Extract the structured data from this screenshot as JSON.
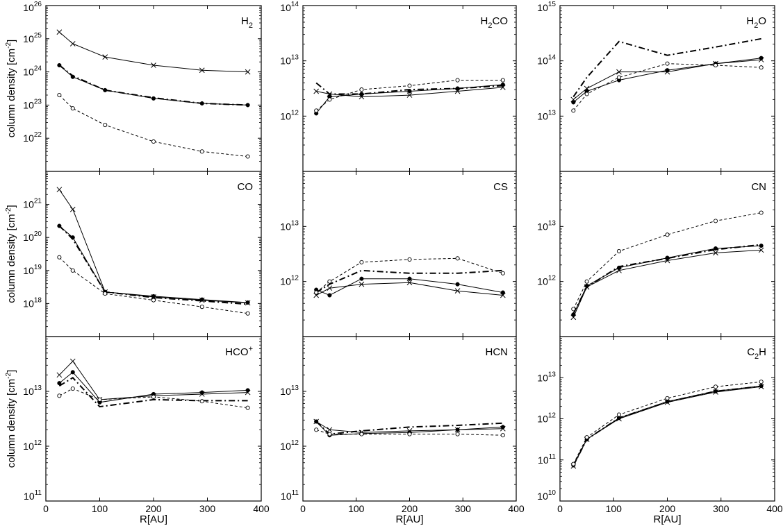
{
  "figure": {
    "ylabel": "column density [cm-2]",
    "ylabel_parts": [
      "column density [cm",
      "-2",
      "]"
    ],
    "xlabel": "R[AU]"
  },
  "chart_data": [
    {
      "type": "line",
      "title": "H2",
      "title_parts": [
        [
          "H",
          ""
        ],
        [
          "2",
          "sub"
        ]
      ],
      "xlabel": "",
      "ylabel": "column density [cm-2]",
      "xlim": [
        0,
        400
      ],
      "ylim_log10": [
        21,
        26
      ],
      "yticks": [
        "10^22",
        "10^23",
        "10^24",
        "10^25",
        "10^26"
      ],
      "series": [
        {
          "name": "cross",
          "marker": "x",
          "x": [
            25,
            50,
            110,
            200,
            290,
            375
          ],
          "y_log10": [
            25.2,
            24.85,
            24.45,
            24.2,
            24.05,
            24.0
          ]
        },
        {
          "name": "filled",
          "marker": "dot",
          "x": [
            25,
            50,
            110,
            200,
            290,
            375
          ],
          "y_log10": [
            24.2,
            23.85,
            23.45,
            23.2,
            23.05,
            23.0
          ]
        },
        {
          "name": "dashdot",
          "marker": "none",
          "x": [
            25,
            50,
            110,
            200,
            290,
            375
          ],
          "y_log10": [
            24.2,
            23.88,
            23.45,
            23.22,
            23.05,
            23.0
          ]
        },
        {
          "name": "open",
          "marker": "circle",
          "x": [
            25,
            50,
            110,
            200,
            290,
            375
          ],
          "y_log10": [
            23.3,
            22.9,
            22.4,
            21.9,
            21.6,
            21.45
          ]
        }
      ]
    },
    {
      "type": "line",
      "title": "H2CO",
      "title_parts": [
        [
          "H",
          ""
        ],
        [
          "2",
          "sub"
        ],
        [
          "CO",
          ""
        ]
      ],
      "xlim": [
        0,
        400
      ],
      "ylim_log10": [
        11,
        14
      ],
      "yticks": [
        "10^12",
        "10^13",
        "10^14"
      ],
      "series": [
        {
          "name": "cross",
          "marker": "x",
          "x": [
            25,
            50,
            110,
            200,
            290,
            375
          ],
          "y_log10": [
            12.45,
            12.4,
            12.35,
            12.38,
            12.45,
            12.52
          ]
        },
        {
          "name": "filled",
          "marker": "dot",
          "x": [
            25,
            50,
            110,
            200,
            290,
            375
          ],
          "y_log10": [
            12.05,
            12.35,
            12.4,
            12.45,
            12.5,
            12.57
          ]
        },
        {
          "name": "dashdot",
          "marker": "none",
          "x": [
            25,
            50,
            110,
            200,
            290,
            375
          ],
          "y_log10": [
            12.6,
            12.4,
            12.4,
            12.48,
            12.5,
            12.55
          ]
        },
        {
          "name": "open",
          "marker": "circle",
          "x": [
            25,
            50,
            110,
            200,
            290,
            375
          ],
          "y_log10": [
            12.1,
            12.3,
            12.48,
            12.55,
            12.65,
            12.65
          ]
        }
      ]
    },
    {
      "type": "line",
      "title": "H2O",
      "title_parts": [
        [
          "H",
          ""
        ],
        [
          "2",
          "sub"
        ],
        [
          "O",
          ""
        ]
      ],
      "xlim": [
        0,
        400
      ],
      "ylim_log10": [
        12,
        15
      ],
      "yticks": [
        "10^13",
        "10^14",
        "10^15"
      ],
      "series": [
        {
          "name": "cross",
          "marker": "x",
          "x": [
            25,
            50,
            110,
            200,
            290,
            375
          ],
          "y_log10": [
            13.3,
            13.5,
            13.8,
            13.8,
            13.95,
            14.02
          ]
        },
        {
          "name": "filled",
          "marker": "dot",
          "x": [
            25,
            50,
            110,
            200,
            290,
            375
          ],
          "y_log10": [
            13.25,
            13.45,
            13.65,
            13.83,
            13.95,
            14.05
          ]
        },
        {
          "name": "dashdot",
          "marker": "none",
          "x": [
            25,
            50,
            110,
            200,
            290,
            375
          ],
          "y_log10": [
            13.35,
            13.7,
            14.35,
            14.1,
            14.25,
            14.4
          ]
        },
        {
          "name": "open",
          "marker": "circle",
          "x": [
            25,
            50,
            110,
            200,
            290,
            375
          ],
          "y_log10": [
            13.1,
            13.4,
            13.7,
            13.95,
            13.92,
            13.88
          ]
        }
      ]
    },
    {
      "type": "line",
      "title": "CO",
      "title_parts": [
        [
          "CO",
          ""
        ]
      ],
      "xlim": [
        0,
        400
      ],
      "ylim_log10": [
        17,
        22
      ],
      "yticks": [
        "10^18",
        "10^19",
        "10^20",
        "10^21"
      ],
      "series": [
        {
          "name": "cross",
          "marker": "x",
          "x": [
            25,
            50,
            110,
            200,
            290,
            375
          ],
          "y_log10": [
            21.45,
            20.85,
            18.35,
            18.2,
            18.1,
            18.02
          ]
        },
        {
          "name": "filled",
          "marker": "dot",
          "x": [
            25,
            50,
            110,
            200,
            290,
            375
          ],
          "y_log10": [
            20.35,
            20.0,
            18.35,
            18.22,
            18.12,
            18.03
          ]
        },
        {
          "name": "dashdot",
          "marker": "none",
          "x": [
            25,
            50,
            110,
            200,
            290,
            375
          ],
          "y_log10": [
            20.35,
            19.95,
            18.35,
            18.18,
            18.08,
            17.98
          ]
        },
        {
          "name": "open",
          "marker": "circle",
          "x": [
            25,
            50,
            110,
            200,
            290,
            375
          ],
          "y_log10": [
            19.4,
            19.0,
            18.3,
            18.1,
            17.9,
            17.7
          ]
        }
      ]
    },
    {
      "type": "line",
      "title": "CS",
      "title_parts": [
        [
          "CS",
          ""
        ]
      ],
      "xlim": [
        0,
        400
      ],
      "ylim_log10": [
        11,
        14
      ],
      "yticks": [
        "10^12",
        "10^13"
      ],
      "series": [
        {
          "name": "cross",
          "marker": "x",
          "x": [
            25,
            50,
            110,
            200,
            290,
            375
          ],
          "y_log10": [
            11.75,
            11.88,
            11.95,
            11.98,
            11.83,
            11.75
          ]
        },
        {
          "name": "filled",
          "marker": "dot",
          "x": [
            25,
            50,
            110,
            200,
            290,
            375
          ],
          "y_log10": [
            11.85,
            11.75,
            12.05,
            12.05,
            11.95,
            11.8
          ]
        },
        {
          "name": "dashdot",
          "marker": "none",
          "x": [
            25,
            50,
            110,
            200,
            290,
            375
          ],
          "y_log10": [
            11.8,
            11.95,
            12.2,
            12.15,
            12.15,
            12.2
          ]
        },
        {
          "name": "open",
          "marker": "circle",
          "x": [
            25,
            50,
            110,
            200,
            290,
            375
          ],
          "y_log10": [
            11.8,
            12.0,
            12.35,
            12.4,
            12.42,
            12.15
          ]
        }
      ]
    },
    {
      "type": "line",
      "title": "CN",
      "title_parts": [
        [
          "CN",
          ""
        ]
      ],
      "xlim": [
        0,
        400
      ],
      "ylim_log10": [
        11,
        14
      ],
      "yticks": [
        "10^12",
        "10^13"
      ],
      "series": [
        {
          "name": "cross",
          "marker": "x",
          "x": [
            25,
            50,
            110,
            200,
            290,
            375
          ],
          "y_log10": [
            11.35,
            11.9,
            12.2,
            12.38,
            12.52,
            12.57
          ]
        },
        {
          "name": "filled",
          "marker": "dot",
          "x": [
            25,
            50,
            110,
            200,
            290,
            375
          ],
          "y_log10": [
            11.4,
            11.92,
            12.25,
            12.43,
            12.6,
            12.65
          ]
        },
        {
          "name": "dashdot",
          "marker": "none",
          "x": [
            25,
            50,
            110,
            200,
            290,
            375
          ],
          "y_log10": [
            11.42,
            11.9,
            12.27,
            12.42,
            12.58,
            12.67
          ]
        },
        {
          "name": "open",
          "marker": "circle",
          "x": [
            25,
            50,
            110,
            200,
            290,
            375
          ],
          "y_log10": [
            11.5,
            12.0,
            12.55,
            12.85,
            13.1,
            13.25
          ]
        }
      ]
    },
    {
      "type": "line",
      "title": "HCO+",
      "title_parts": [
        [
          "HCO",
          ""
        ],
        [
          "+",
          "sup"
        ]
      ],
      "xlabel": "R[AU]",
      "xlim": [
        0,
        400
      ],
      "ylim_log10": [
        11,
        14
      ],
      "yticks": [
        "10^11",
        "10^12",
        "10^13"
      ],
      "xticks": [
        0,
        100,
        200,
        300,
        400
      ],
      "series": [
        {
          "name": "cross",
          "marker": "x",
          "x": [
            25,
            50,
            100,
            200,
            290,
            375
          ],
          "y_log10": [
            13.3,
            13.55,
            12.85,
            12.92,
            12.95,
            12.98
          ]
        },
        {
          "name": "filled",
          "marker": "dot",
          "x": [
            25,
            50,
            100,
            200,
            290,
            375
          ],
          "y_log10": [
            13.15,
            13.35,
            12.8,
            12.95,
            12.98,
            13.02
          ]
        },
        {
          "name": "dashdot",
          "marker": "none",
          "x": [
            25,
            50,
            100,
            200,
            290,
            375
          ],
          "y_log10": [
            13.1,
            13.25,
            12.72,
            12.85,
            12.83,
            12.83
          ]
        },
        {
          "name": "open",
          "marker": "circle",
          "x": [
            25,
            50,
            100,
            200,
            290,
            375
          ],
          "y_log10": [
            12.92,
            13.05,
            12.85,
            12.9,
            12.82,
            12.7
          ]
        }
      ]
    },
    {
      "type": "line",
      "title": "HCN",
      "title_parts": [
        [
          "HCN",
          ""
        ]
      ],
      "xlabel": "R[AU]",
      "xlim": [
        0,
        400
      ],
      "ylim_log10": [
        11,
        14
      ],
      "yticks": [
        "10^11",
        "10^12",
        "10^13"
      ],
      "xticks": [
        0,
        100,
        200,
        300,
        400
      ],
      "series": [
        {
          "name": "cross",
          "marker": "x",
          "x": [
            25,
            50,
            110,
            200,
            290,
            375
          ],
          "y_log10": [
            12.45,
            12.3,
            12.25,
            12.28,
            12.3,
            12.32
          ]
        },
        {
          "name": "filled",
          "marker": "dot",
          "x": [
            25,
            50,
            110,
            200,
            290,
            375
          ],
          "y_log10": [
            12.45,
            12.2,
            12.23,
            12.25,
            12.3,
            12.35
          ]
        },
        {
          "name": "dashdot",
          "marker": "none",
          "x": [
            25,
            50,
            110,
            200,
            290,
            375
          ],
          "y_log10": [
            12.45,
            12.22,
            12.28,
            12.35,
            12.38,
            12.42
          ]
        },
        {
          "name": "open",
          "marker": "circle",
          "x": [
            25,
            50,
            110,
            200,
            290,
            375
          ],
          "y_log10": [
            12.3,
            12.22,
            12.22,
            12.22,
            12.22,
            12.2
          ]
        }
      ]
    },
    {
      "type": "line",
      "title": "C2H",
      "title_parts": [
        [
          "C",
          ""
        ],
        [
          "2",
          "sub"
        ],
        [
          "H",
          ""
        ]
      ],
      "xlabel": "R[AU]",
      "xlim": [
        0,
        400
      ],
      "ylim_log10": [
        10,
        14
      ],
      "yticks": [
        "10^10",
        "10^11",
        "10^12",
        "10^13"
      ],
      "xticks": [
        0,
        100,
        200,
        300,
        400
      ],
      "series": [
        {
          "name": "cross",
          "marker": "x",
          "x": [
            25,
            50,
            110,
            200,
            290,
            375
          ],
          "y_log10": [
            10.85,
            11.5,
            12.0,
            12.4,
            12.65,
            12.78
          ]
        },
        {
          "name": "filled",
          "marker": "dot",
          "x": [
            25,
            50,
            110,
            200,
            290,
            375
          ],
          "y_log10": [
            10.87,
            11.5,
            12.02,
            12.42,
            12.67,
            12.8
          ]
        },
        {
          "name": "dashdot",
          "marker": "none",
          "x": [
            25,
            50,
            110,
            200,
            290,
            375
          ],
          "y_log10": [
            10.86,
            11.5,
            12.02,
            12.41,
            12.67,
            12.79
          ]
        },
        {
          "name": "open",
          "marker": "circle",
          "x": [
            25,
            50,
            110,
            200,
            290,
            375
          ],
          "y_log10": [
            10.9,
            11.55,
            12.1,
            12.5,
            12.78,
            12.9
          ]
        }
      ]
    }
  ]
}
